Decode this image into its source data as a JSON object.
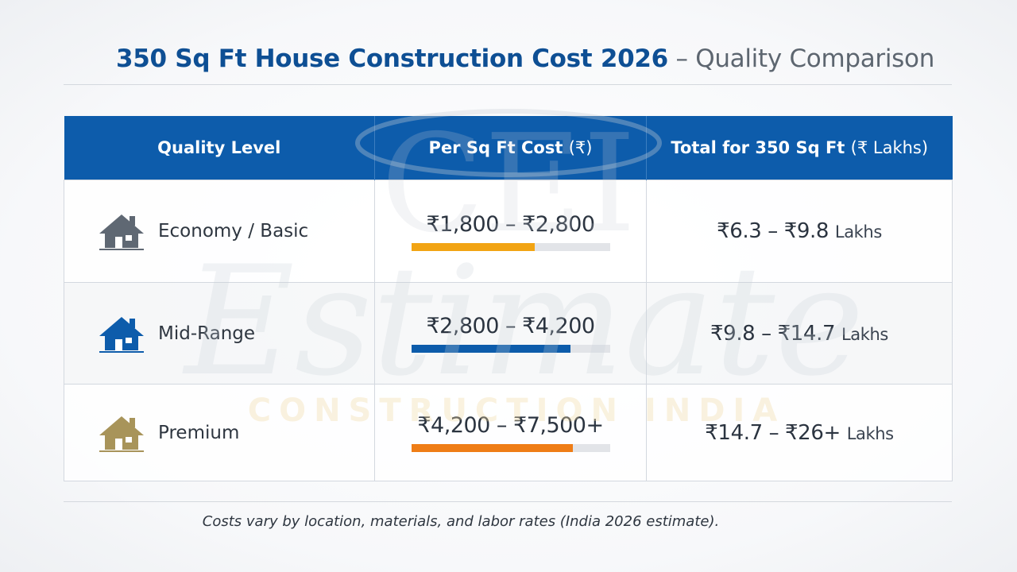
{
  "title": {
    "main": "350 Sq Ft House Construction Cost 2026",
    "separator": " – ",
    "sub": "Quality Comparison"
  },
  "watermark": {
    "logo": "CEI",
    "word": "Estimate",
    "tagline": "CONSTRUCTION INDIA"
  },
  "chart_data": {
    "type": "table",
    "headers": {
      "quality": "Quality Level",
      "per_sqft": "Per Sq Ft Cost",
      "per_sqft_unit": "(₹)",
      "total": "Total for 350 Sq Ft",
      "total_unit": "(₹ Lakhs)"
    },
    "rows": [
      {
        "level": "Economy / Basic",
        "icon": "house-icon",
        "icon_color": "#5f6873",
        "per_sqft_range": "₹1,800 – ₹2,800",
        "bar_fraction": 0.62,
        "bar_color": "#f2a413",
        "total_range": "₹6.3 – ₹9.8",
        "total_unit": "Lakhs"
      },
      {
        "level": "Mid-Range",
        "icon": "house-icon",
        "icon_color": "#0d5cab",
        "per_sqft_range": "₹2,800 – ₹4,200",
        "bar_fraction": 0.8,
        "bar_color": "#0d5cab",
        "total_range": "₹9.8 – ₹14.7",
        "total_unit": "Lakhs"
      },
      {
        "level": "Premium",
        "icon": "house-icon",
        "icon_color": "#a8945a",
        "per_sqft_range": "₹4,200 – ₹7,500+",
        "bar_fraction": 0.81,
        "bar_color": "#ef7d16",
        "total_range": "₹14.7 – ₹26+",
        "total_unit": "Lakhs"
      }
    ]
  },
  "footnote": "Costs vary by location, materials, and labor rates (India 2026 estimate)."
}
